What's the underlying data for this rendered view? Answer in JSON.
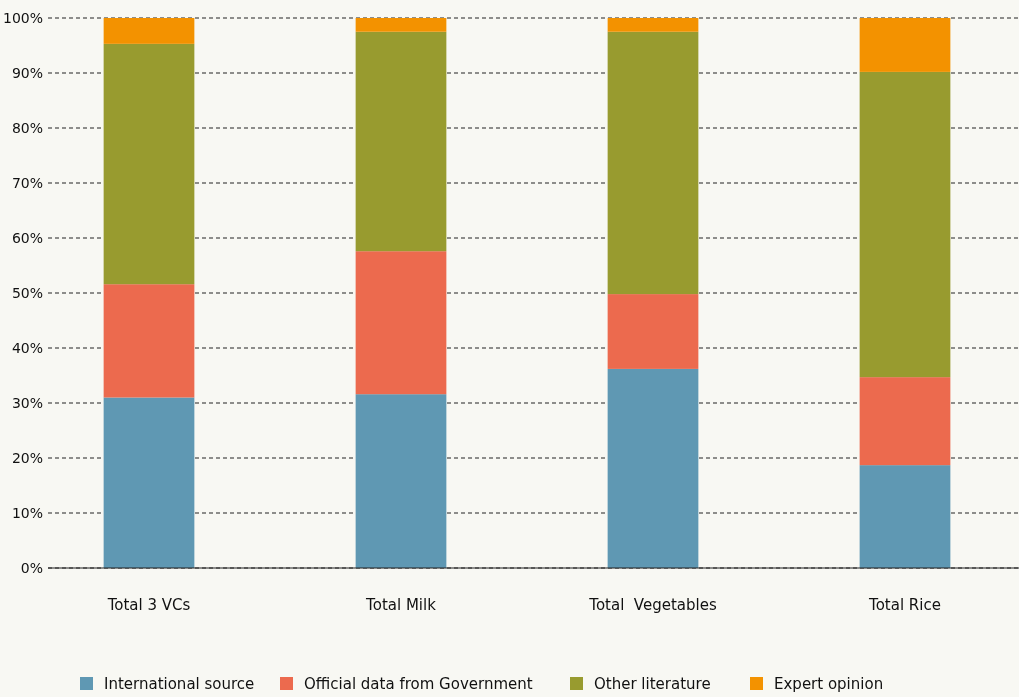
{
  "chart_data": {
    "type": "bar",
    "stacked": true,
    "categories": [
      "Total 3 VCs",
      "Total Milk",
      "Total  Vegetables",
      "Total Rice"
    ],
    "series": [
      {
        "name": "International source",
        "color": "#5f98b3",
        "values": [
          31,
          31.6,
          36.2,
          18.7
        ]
      },
      {
        "name": "Official data from Government",
        "color": "#ec6a4e",
        "values": [
          20.6,
          26,
          13.6,
          16
        ]
      },
      {
        "name": "Other literature",
        "color": "#989b2f",
        "values": [
          43.7,
          39.9,
          47.7,
          55.5
        ]
      },
      {
        "name": "Expert opinion",
        "color": "#f39200",
        "values": [
          4.7,
          2.5,
          2.5,
          9.8
        ]
      }
    ],
    "ylim": [
      0,
      100
    ],
    "yticks": [
      {
        "value": 0,
        "label": "0%"
      },
      {
        "value": 10,
        "label": "10%"
      },
      {
        "value": 20,
        "label": "20%"
      },
      {
        "value": 30,
        "label": "30%"
      },
      {
        "value": 40,
        "label": "40%"
      },
      {
        "value": 50,
        "label": "50%"
      },
      {
        "value": 60,
        "label": "60%"
      },
      {
        "value": 70,
        "label": "70%"
      },
      {
        "value": 80,
        "label": "80%"
      },
      {
        "value": 90,
        "label": "90%"
      },
      {
        "value": 100,
        "label": "100%"
      }
    ],
    "grid": "y",
    "legend": "bottom"
  }
}
